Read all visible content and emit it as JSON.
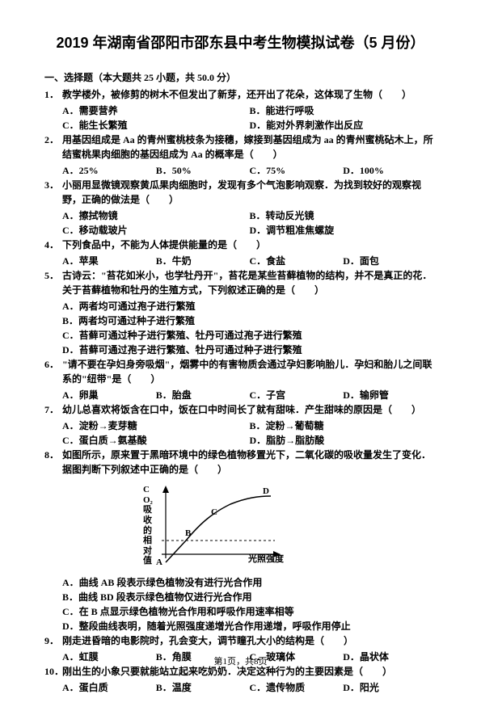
{
  "title": "2019 年湖南省邵阳市邵东县中考生物模拟试卷（5 月份）",
  "section_header": "一、选择题（本大题共 25 小题，共 50.0 分）",
  "questions": [
    {
      "num": "1．",
      "text": "教学楼外，被修剪的树木不但发出了新芽，还开出了花朵，这体现了生物（　　）",
      "opts": [
        [
          "A．需要营养",
          "B．能进行呼吸"
        ],
        [
          "C．能生长繁殖",
          "D．能对外界刺激作出反应"
        ]
      ]
    },
    {
      "num": "2．",
      "text": "用基因组成是 Aa 的青州蜜桃枝条为接穗，嫁接到基因组成为 aa 的青州蜜桃砧木上，所结蜜桃果肉细胞的基因组成为 Aa 的概率是（　　）",
      "opts": [
        [
          "A．25%",
          "B．50%",
          "C．75%",
          "D．100%"
        ]
      ]
    },
    {
      "num": "3．",
      "text": "小丽用显微镜观察黄瓜果肉细胞时，发现有多个气泡影响观察．为找到较好的观察视野，正确的做法是（　　）",
      "opts": [
        [
          "A．擦拭物镜",
          "B．转动反光镜"
        ],
        [
          "C．移动载玻片",
          "D．调节粗准焦螺旋"
        ]
      ]
    },
    {
      "num": "4．",
      "text": "下列食品中，不能为人体提供能量的是（　　）",
      "opts": [
        [
          "A．苹果",
          "B．牛奶",
          "C．食盐",
          "D．面包"
        ]
      ]
    },
    {
      "num": "5．",
      "text": "古诗云：\"苔花如米小，也学牡丹开\"，苔花是某些苔藓植物的结构，并不是真正的花．关于苔藓植物和牡丹的生殖方式，下列叙述正确的是（　　）",
      "subs": [
        "A．两者均可通过孢子进行繁殖",
        "B．两者均可通过种子进行繁殖",
        "C．苔藓可通过种子进行繁殖、牡丹可通过孢子进行繁殖",
        "D．苔藓可通过孢子进行繁殖、牡丹可通过种子进行繁殖"
      ]
    },
    {
      "num": "6．",
      "text": "\"请不要在孕妇身旁吸烟\"，烟雾中的有害物质会通过孕妇影响胎儿．孕妇和胎儿之间联系的\"纽带\"是（　　）",
      "opts": [
        [
          "A．卵巢",
          "B．胎盘",
          "C．子宫",
          "D．输卵管"
        ]
      ]
    },
    {
      "num": "7．",
      "text": "幼儿总喜欢将饭含在口中，饭在口中时间长了就有甜味．产生甜味的原因是（　　）",
      "opts": [
        [
          "A．淀粉→麦芽糖",
          "B．淀粉→葡萄糖"
        ],
        [
          "C．蛋白质→氨基酸",
          "D．脂肪→脂肪酸"
        ]
      ]
    },
    {
      "num": "8．",
      "text": "如图所示，原来置于黑暗环境中的绿色植物移置光下，二氧化碳的吸收量发生了变化．据图判断下列叙述中正确的是（　　）",
      "chart": true,
      "subs": [
        "A．曲线 AB 段表示绿色植物没有进行光合作用",
        "B．曲线 BD 段表示绿色植物仅进行光合作用",
        "C．在 B 点显示绿色植物光合作用和呼吸作用速率相等",
        "D．整段曲线表明，随着光照强度递增光合作用递增，呼吸作用停止"
      ]
    },
    {
      "num": "9．",
      "text": "刚走进昏暗的电影院时，孔会变大，调节瞳孔大小的结构是（　　）",
      "opts": [
        [
          "A．虹膜",
          "B．角膜",
          "C．玻璃体",
          "D．晶状体"
        ]
      ]
    },
    {
      "num": "10．",
      "text": "刚出生的小象只要就能站立起来吃奶奶．决定这种行为的主要因素是（　　）",
      "opts": [
        [
          "A．蛋白质",
          "B．温度",
          "C．遗传物质",
          "D．阳光"
        ]
      ]
    }
  ],
  "chart": {
    "ylabel": "CO₂吸收的相对值",
    "xlabel": "光照强度",
    "points": {
      "A": "A",
      "B": "B",
      "C": "C",
      "D": "D"
    },
    "stroke": "#000000",
    "bg": "#ffffff"
  },
  "footer": "第1页，共8页"
}
